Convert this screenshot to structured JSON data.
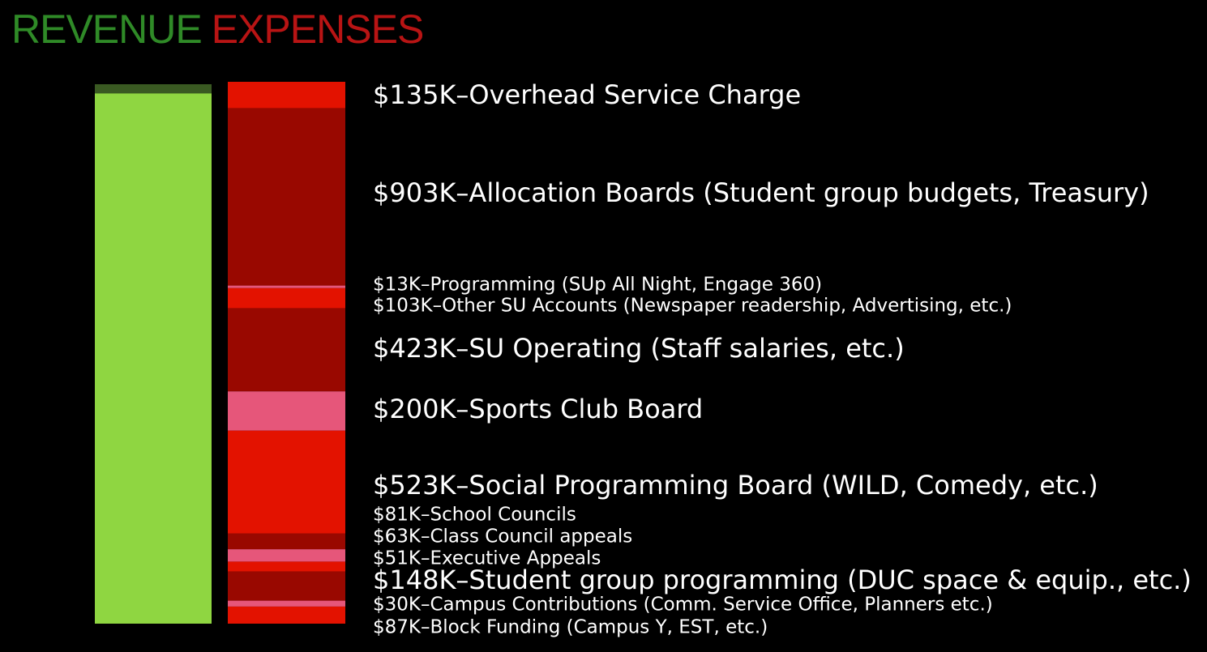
{
  "title": {
    "revenue_label": "REVENUE",
    "expenses_label": "EXPENSES",
    "revenue_color": "#2f8a27",
    "expenses_color": "#b81414"
  },
  "chart_data": {
    "type": "bar",
    "layout": "stacked-single-column",
    "unit": "$K",
    "revenue": {
      "name": "REVENUE",
      "total": 2560,
      "top_cap_fraction": 0.017,
      "color": "#8fd641",
      "cap_color": "#3a5a22"
    },
    "expenses": [
      {
        "value": 135,
        "label": "$135K–Overhead Service Charge",
        "color": "#e31200",
        "size": "large"
      },
      {
        "value": 903,
        "label": "$903K–Allocation Boards (Student group budgets, Treasury)",
        "color": "#990800",
        "size": "large"
      },
      {
        "value": 13,
        "label": "$13K–Programming (SUp All Night, Engage 360)",
        "color": "#e6567a",
        "size": "small"
      },
      {
        "value": 103,
        "label": "$103K–Other SU Accounts (Newspaper readership, Advertising, etc.)",
        "color": "#e31200",
        "size": "small"
      },
      {
        "value": 423,
        "label": "$423K–SU Operating (Staff salaries, etc.)",
        "color": "#990800",
        "size": "large"
      },
      {
        "value": 200,
        "label": "$200K–Sports Club Board",
        "color": "#e6567a",
        "size": "large"
      },
      {
        "value": 523,
        "label": "$523K–Social Programming Board (WILD, Comedy, etc.)",
        "color": "#e31200",
        "size": "large"
      },
      {
        "value": 81,
        "label": "$81K–School Councils",
        "color": "#990800",
        "size": "small"
      },
      {
        "value": 63,
        "label": "$63K–Class Council appeals",
        "color": "#e6567a",
        "size": "small"
      },
      {
        "value": 51,
        "label": "$51K–Executive Appeals",
        "color": "#e31200",
        "size": "small"
      },
      {
        "value": 148,
        "label": "$148K–Student group programming (DUC space & equip., etc.)",
        "color": "#990800",
        "size": "large"
      },
      {
        "value": 30,
        "label": "$30K–Campus Contributions (Comm. Service Office, Planners etc.)",
        "color": "#e6567a",
        "size": "small"
      },
      {
        "value": 87,
        "label": "$87K–Block Funding (Campus Y, EST, etc.)",
        "color": "#e31200",
        "size": "small"
      }
    ]
  }
}
